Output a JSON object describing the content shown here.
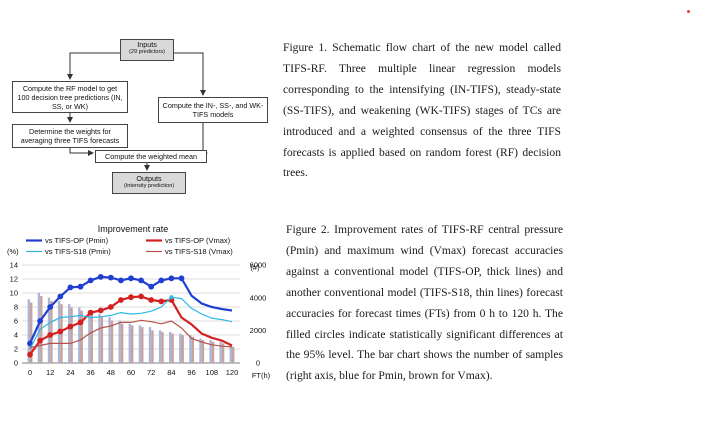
{
  "flowchart": {
    "inputs_title": "Inputs",
    "inputs_sub": "(29 predictors)",
    "rf_model": "Compute the RF model to get 100 decision tree predictions (IN, SS, or WK)",
    "weights": "Determine the weights for averaging three TIFS forecasts",
    "tifs_models": "Compute the IN-, SS-, and WK-TIFS models",
    "weighted_mean": "Compute the weighted mean",
    "outputs_title": "Outputs",
    "outputs_sub": "(Intensity prediction)"
  },
  "captions": {
    "fig1": "Figure 1. Schematic flow chart of the new model called TIFS-RF. Three multiple linear regression models corresponding to the intensifying (IN-TIFS), steady-state (SS-TIFS), and weakening (WK-TIFS) stages of TCs are introduced and a weighted consensus of the three TIFS forecasts is applied based on random forest (RF) decision trees.",
    "fig2": "Figure 2. Improvement rates of TIFS-RF central pressure (Pmin) and maximum wind (Vmax) forecast accuracies against a conventional model (TIFS-OP, thick lines) and another conventional model (TIFS-S18, thin lines) forecast accuracies for forecast times (FTs) from 0 h to 120 h. The filled circles indicate statistically significant differences at the 95% level. The bar chart shows the number of samples (right axis, blue for Pmin, brown for Vmax)."
  },
  "chart_data": {
    "type": "line",
    "title": "Improvement rate",
    "ylabel": "(%)",
    "y2label": "(#)",
    "xlabel": "FT(h)",
    "ylim": [
      0,
      14
    ],
    "y2lim": [
      0,
      6000
    ],
    "yticks": [
      "0",
      "2",
      "4",
      "6",
      "8",
      "10",
      "12",
      "14"
    ],
    "y2ticks": [
      "0",
      "2000",
      "4000",
      "6000"
    ],
    "xticks": [
      "0",
      "12",
      "24",
      "36",
      "48",
      "60",
      "72",
      "84",
      "96",
      "108",
      "120"
    ],
    "x": [
      0,
      6,
      12,
      18,
      24,
      30,
      36,
      42,
      48,
      54,
      60,
      66,
      72,
      78,
      84,
      90,
      96,
      102,
      108,
      114,
      120
    ],
    "series": [
      {
        "name": "vs TIFS-OP (Pmin)",
        "color": "#1f3fd0",
        "width": 2.2,
        "values": [
          2.8,
          6.0,
          8.0,
          9.5,
          10.8,
          10.9,
          11.8,
          12.3,
          12.2,
          11.8,
          12.1,
          11.8,
          10.9,
          11.8,
          12.1,
          12.1,
          9.6,
          8.5,
          8.0,
          7.7,
          7.5
        ],
        "significant": [
          true,
          true,
          true,
          true,
          true,
          true,
          true,
          true,
          true,
          true,
          true,
          true,
          true,
          true,
          true,
          true,
          false,
          false,
          false,
          false,
          false
        ]
      },
      {
        "name": "vs TIFS-OP (Vmax)",
        "color": "#d42020",
        "width": 2.2,
        "values": [
          1.2,
          3.2,
          4.0,
          4.5,
          5.2,
          5.8,
          7.2,
          7.5,
          8.0,
          9.0,
          9.4,
          9.5,
          9.0,
          8.8,
          9.0,
          6.5,
          5.5,
          4.2,
          3.6,
          3.2,
          2.5
        ],
        "significant": [
          true,
          true,
          true,
          true,
          true,
          true,
          true,
          true,
          true,
          true,
          true,
          true,
          true,
          true,
          true,
          false,
          false,
          false,
          false,
          false,
          false
        ]
      },
      {
        "name": "vs TIFS-S18 (Pmin)",
        "color": "#29b8e6",
        "width": 1.2,
        "values": [
          2.0,
          4.8,
          5.8,
          6.5,
          6.6,
          6.8,
          6.5,
          6.6,
          6.8,
          7.2,
          7.0,
          7.1,
          7.4,
          8.0,
          9.4,
          9.2,
          7.8,
          7.0,
          6.4,
          6.2,
          5.9
        ],
        "significant": [
          false,
          false,
          false,
          false,
          false,
          false,
          false,
          false,
          false,
          false,
          false,
          false,
          false,
          false,
          true,
          false,
          false,
          false,
          false,
          false,
          false
        ]
      },
      {
        "name": "vs TIFS-S18 (Vmax)",
        "color": "#b5534a",
        "width": 1.2,
        "values": [
          2.2,
          2.5,
          2.8,
          2.8,
          2.8,
          3.3,
          4.3,
          5.0,
          5.3,
          5.8,
          5.8,
          6.1,
          5.9,
          5.6,
          6.0,
          5.0,
          3.5,
          3.0,
          2.6,
          2.4,
          2.3
        ],
        "significant": [
          false,
          false,
          false,
          false,
          false,
          false,
          false,
          false,
          false,
          false,
          false,
          false,
          false,
          false,
          false,
          false,
          false,
          false,
          false,
          false,
          false
        ]
      }
    ],
    "bars": [
      {
        "name": "samples (Pmin)",
        "color": "#a9b6d8",
        "values": [
          3900,
          4300,
          4000,
          3800,
          3600,
          3400,
          3200,
          3000,
          2800,
          2600,
          2400,
          2300,
          2200,
          2000,
          1900,
          1800,
          1700,
          1500,
          1400,
          1300,
          1100
        ]
      },
      {
        "name": "samples (Vmax)",
        "color": "#c9a29c",
        "values": [
          3700,
          4100,
          3800,
          3600,
          3400,
          3200,
          3000,
          2800,
          2600,
          2400,
          2300,
          2200,
          2000,
          1900,
          1800,
          1700,
          1600,
          1400,
          1300,
          1200,
          1000
        ]
      }
    ],
    "legend_position": "top",
    "grid": true,
    "colors": {
      "pmin_op": "#1f3fd0",
      "vmax_op": "#d42020",
      "pmin_s18": "#29b8e6",
      "vmax_s18": "#b5534a"
    }
  }
}
